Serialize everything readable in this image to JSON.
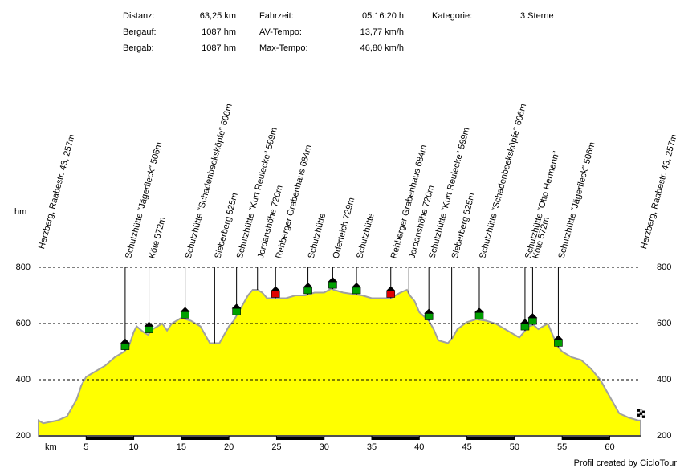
{
  "stats": [
    [
      "Distanz:",
      "63,25 km"
    ],
    [
      "Bergauf:",
      "1087 hm"
    ],
    [
      "Bergab:",
      "1087 hm"
    ],
    [
      "Fahrzeit:",
      "05:16:20 h"
    ],
    [
      "AV-Tempo:",
      "13,77 km/h"
    ],
    [
      "Max-Tempo:",
      "46,80 km/h"
    ],
    [
      "Kategorie:",
      "3 Sterne"
    ]
  ],
  "credit": "Profil created by CicloTour",
  "chart_data": {
    "type": "area",
    "x_label": "km",
    "y_label": "hm",
    "color": "#ffff00",
    "line_color": "#a0a0a0",
    "grid": true,
    "xlim": [
      0,
      63.25
    ],
    "ylim": [
      200,
      800
    ],
    "xticks": [
      5,
      10,
      15,
      20,
      25,
      30,
      35,
      40,
      45,
      50,
      55,
      60
    ],
    "yticks": [
      200,
      400,
      600,
      800
    ],
    "x": [
      0,
      0.5,
      2,
      3,
      4,
      4.5,
      5,
      6,
      7,
      8,
      8.5,
      9,
      9.5,
      10,
      10.3,
      11,
      11.5,
      12,
      12.5,
      13,
      13.5,
      14,
      14.5,
      15,
      16,
      17,
      17.5,
      18,
      19,
      19.5,
      20,
      20.5,
      21,
      22,
      22.5,
      23,
      23.5,
      24,
      25,
      26,
      27,
      28,
      29,
      30,
      30.8,
      31,
      32,
      33,
      34,
      35,
      36,
      37,
      38,
      38.7,
      39,
      39.5,
      40,
      41,
      41.5,
      42,
      43,
      43.5,
      44,
      45,
      46,
      47,
      48,
      49,
      50,
      50.5,
      51,
      51.5,
      52,
      52.5,
      53,
      53.5,
      54,
      54.5,
      55,
      56,
      57,
      58,
      59,
      60,
      61,
      62,
      63,
      63.25
    ],
    "values": [
      255,
      245,
      255,
      270,
      330,
      380,
      410,
      430,
      450,
      480,
      490,
      500,
      520,
      570,
      590,
      570,
      560,
      580,
      590,
      600,
      575,
      600,
      610,
      620,
      610,
      590,
      560,
      530,
      530,
      560,
      590,
      610,
      640,
      700,
      720,
      720,
      710,
      690,
      690,
      690,
      700,
      700,
      710,
      710,
      725,
      720,
      710,
      705,
      700,
      690,
      690,
      690,
      710,
      720,
      700,
      680,
      640,
      610,
      580,
      540,
      530,
      550,
      580,
      605,
      615,
      610,
      600,
      580,
      560,
      550,
      570,
      590,
      595,
      580,
      590,
      600,
      560,
      520,
      500,
      480,
      470,
      440,
      400,
      340,
      280,
      265,
      255,
      255
    ],
    "waypoints": [
      {
        "label": "Herzberg, Raabestr. 43, 257m",
        "km": 0
      },
      {
        "label": "Schutzhütte \"Jägerfleck\" 506m",
        "km": 9.1,
        "marker": "#00a000"
      },
      {
        "label": "Köte 572m",
        "km": 11.6,
        "marker": "#00a000"
      },
      {
        "label": "Schutzhütte \"Schadenbeeksköpfe\" 606m",
        "km": 15.4,
        "marker": "#00a000"
      },
      {
        "label": "Sieberberg 525m",
        "km": 18.5
      },
      {
        "label": "Schutzhütte \"Kurt Reulecke\" 599m",
        "km": 20.8,
        "marker": "#00a000"
      },
      {
        "label": "Jordanshöhe 720m",
        "km": 23
      },
      {
        "label": "Rehberger Grabenhaus 684m",
        "km": 24.9,
        "marker": "#e00000"
      },
      {
        "label": "Schutzhütte",
        "km": 28.3,
        "marker": "#00a000"
      },
      {
        "label": "Oderteich 729m",
        "km": 30.9,
        "marker": "#00a000"
      },
      {
        "label": "Schutzhütte",
        "km": 33.4,
        "marker": "#00a000"
      },
      {
        "label": "Rehberger Grabenhaus 684m",
        "km": 37,
        "marker": "#e00000"
      },
      {
        "label": "Jordanshöhe 720m",
        "km": 38.9
      },
      {
        "label": "Schutzhütte \"Kurt Reulecke\" 599m",
        "km": 41,
        "marker": "#00a000"
      },
      {
        "label": "Sieberberg 525m",
        "km": 43.4
      },
      {
        "label": "Schutzhütte \"Schadenbeeksköpfe\" 606m",
        "km": 46.3,
        "marker": "#00a000"
      },
      {
        "label": "Schutzhütte \"Otto Hermann\"",
        "km": 51.1,
        "marker": "#00a000"
      },
      {
        "label": "Köte 572m",
        "km": 51.9,
        "marker": "#00a000"
      },
      {
        "label": "Schutzhütte \"Jägerfleck\" 506m",
        "km": 54.6,
        "marker": "#00a000"
      },
      {
        "label": "Herzberg, Raabestr. 43, 257m",
        "km": 63.25
      }
    ]
  }
}
